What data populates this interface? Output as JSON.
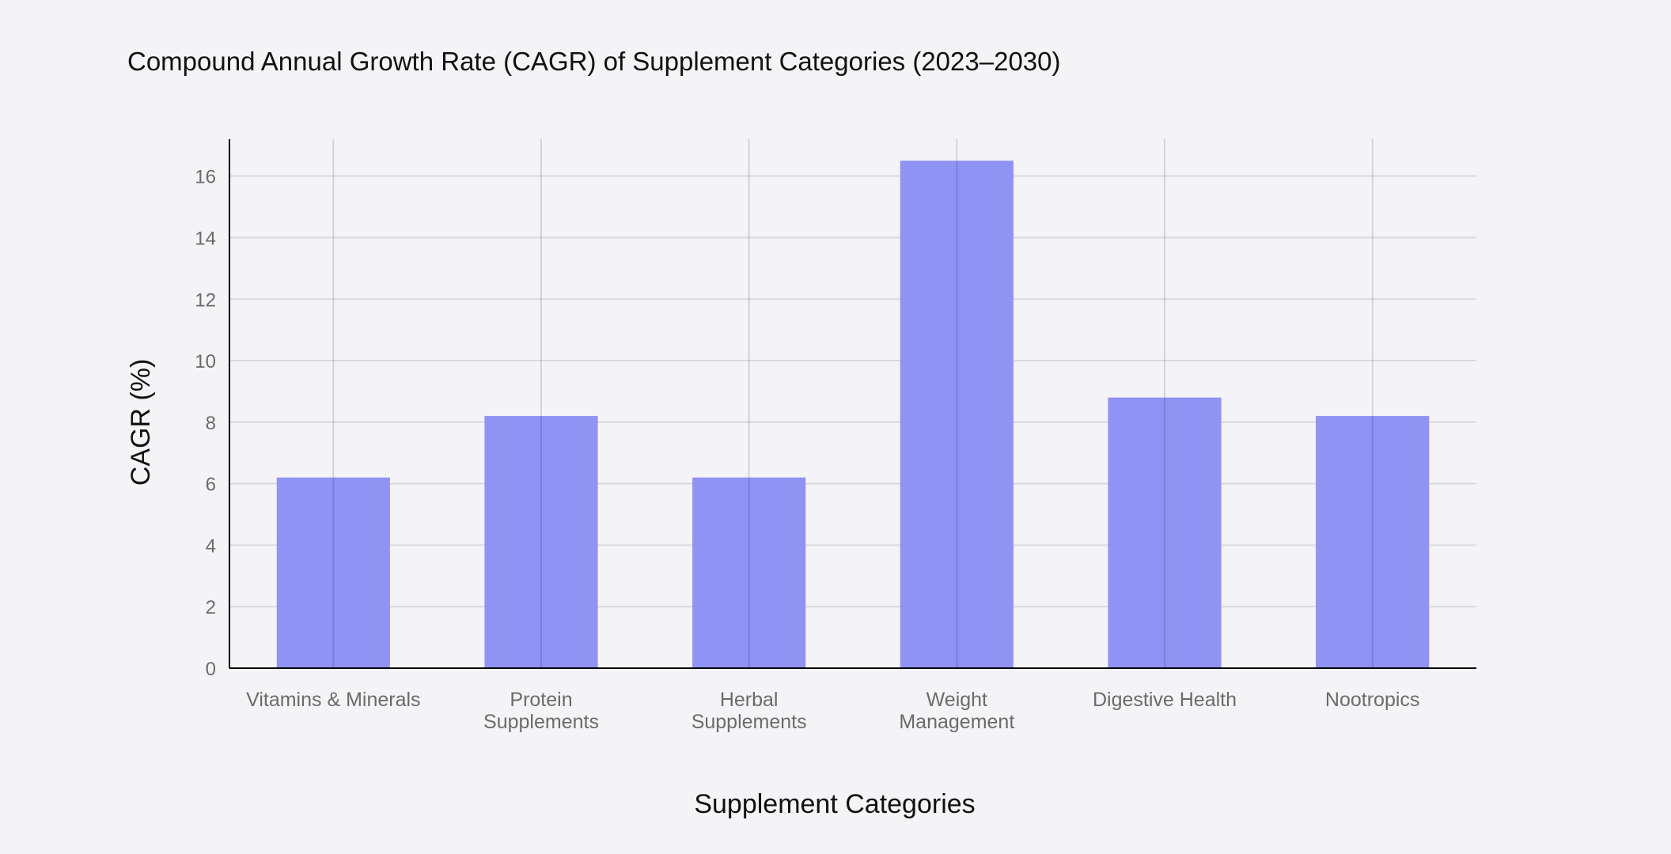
{
  "chart_data": {
    "type": "bar",
    "title": "Compound Annual Growth Rate (CAGR) of Supplement Categories (2023–2030)",
    "xlabel": "Supplement Categories",
    "ylabel": "CAGR (%)",
    "categories": [
      [
        "Vitamins & Minerals"
      ],
      [
        "Protein",
        "Supplements"
      ],
      [
        "Herbal",
        "Supplements"
      ],
      [
        "Weight",
        "Management"
      ],
      [
        "Digestive Health"
      ],
      [
        "Nootropics"
      ]
    ],
    "values": [
      6.2,
      8.2,
      6.2,
      16.5,
      8.8,
      8.2
    ],
    "ylim": [
      0,
      17.2
    ],
    "yticks": [
      0,
      2,
      4,
      6,
      8,
      10,
      12,
      14,
      16
    ],
    "grid": true,
    "bar_color": "#8f93f4"
  }
}
